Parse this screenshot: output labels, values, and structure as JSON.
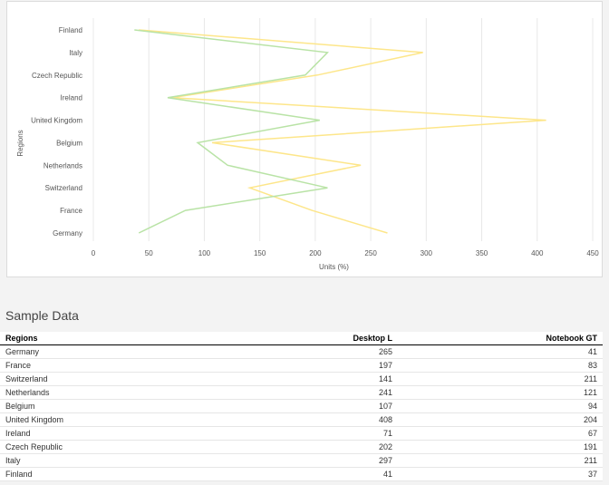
{
  "chart_data": {
    "type": "line",
    "orientation": "vertical-categories",
    "categories": [
      "Finland",
      "Italy",
      "Czech Republic",
      "Ireland",
      "United Kingdom",
      "Belgium",
      "Netherlands",
      "Switzerland",
      "France",
      "Germany"
    ],
    "series": [
      {
        "name": "Desktop L",
        "color": "#fde68a",
        "values": [
          41,
          297,
          202,
          71,
          408,
          107,
          241,
          141,
          197,
          265
        ]
      },
      {
        "name": "Notebook GT",
        "color": "#b9e3a6",
        "values": [
          37,
          211,
          191,
          67,
          204,
          94,
          121,
          211,
          83,
          41
        ]
      }
    ],
    "xlabel": "Units (%)",
    "ylabel": "Regions",
    "xticks": [
      "0",
      "50",
      "100",
      "150",
      "200",
      "250",
      "300",
      "350",
      "400",
      "450"
    ],
    "xlim": [
      0,
      450
    ],
    "grid": true
  },
  "table": {
    "title": "Sample Data",
    "headers": [
      "Regions",
      "Desktop L",
      "Notebook GT"
    ],
    "rows": [
      [
        "Germany",
        "265",
        "41"
      ],
      [
        "France",
        "197",
        "83"
      ],
      [
        "Switzerland",
        "141",
        "211"
      ],
      [
        "Netherlands",
        "241",
        "121"
      ],
      [
        "Belgium",
        "107",
        "94"
      ],
      [
        "United Kingdom",
        "408",
        "204"
      ],
      [
        "Ireland",
        "71",
        "67"
      ],
      [
        "Czech Republic",
        "202",
        "191"
      ],
      [
        "Italy",
        "297",
        "211"
      ],
      [
        "Finland",
        "41",
        "37"
      ]
    ]
  }
}
